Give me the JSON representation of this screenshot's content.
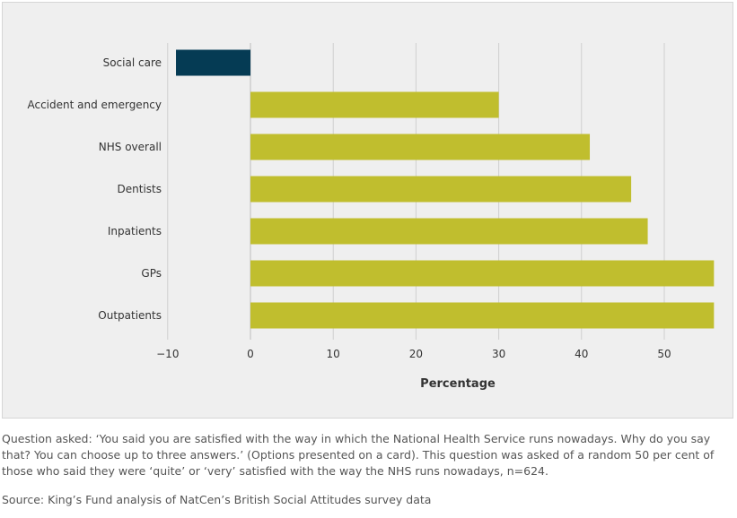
{
  "chart_data": {
    "type": "bar",
    "orientation": "horizontal",
    "categories": [
      "Social care",
      "Accident and emergency",
      "NHS overall",
      "Dentists",
      "Inpatients",
      "GPs",
      "Outpatients"
    ],
    "values": [
      -9,
      30,
      41,
      46,
      48,
      56,
      56
    ],
    "colors": [
      "#053b54",
      "#c0be2e",
      "#c0be2e",
      "#c0be2e",
      "#c0be2e",
      "#c0be2e",
      "#c0be2e"
    ],
    "xlabel": "Percentage",
    "xticks": [
      -10,
      0,
      10,
      20,
      30,
      40,
      50
    ],
    "xtick_labels": [
      "−10",
      "0",
      "10",
      "20",
      "30",
      "40",
      "50"
    ],
    "xlim": [
      -10,
      56
    ],
    "grid": "vertical"
  },
  "caption": {
    "question": "Question asked: ‘You said you are satisfied with the way in which the National Health Service runs nowadays. Why do you say that? You can choose up to three answers.’ (Options presented on a card). This question was asked of a random 50 per cent of those who said they were ‘quite’ or ‘very’ satisfied with the way the NHS runs nowadays, n=624.",
    "source": "Source: King’s Fund analysis of NatCen’s British Social Attitudes survey data"
  }
}
